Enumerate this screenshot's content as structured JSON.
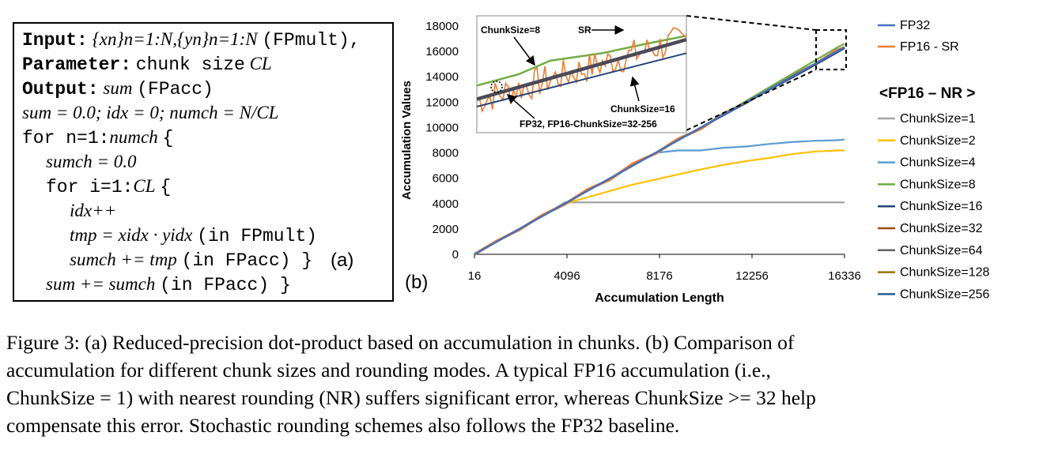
{
  "algorithm": {
    "input_kw": "Input:",
    "input_expr": "{xn}n=1:N,{yn}n=1:N",
    "input_note": "(FPmult),",
    "param_kw": "Parameter:",
    "param_text": "chunk size",
    "param_var": "CL",
    "output_kw": "Output:",
    "output_var": "sum",
    "output_note": "(FPacc)",
    "l4": "sum = 0.0; idx = 0; numch = N/CL",
    "l5_kw": "for n=1:",
    "l5_var": "numch",
    "l5_end": "{",
    "l6": "sumch = 0.0",
    "l7_kw": "for i=1:",
    "l7_var": "CL",
    "l7_end": "{",
    "l8": "idx++",
    "l9_expr": "tmp = xidx · yidx",
    "l9_note": "(in FPmult)",
    "l10_expr": "sumch += tmp",
    "l10_note": "(in FPacc) }",
    "l11_expr": "sum += sumch",
    "l11_note": "(in FPacc) }",
    "panel_label": "(a)"
  },
  "chart_panel_label": "(b)",
  "chart_data": {
    "type": "line",
    "xlabel": "Accumulation Length",
    "ylabel": "Accumulation Values",
    "x_ticks": [
      16,
      4096,
      8176,
      12256,
      16336
    ],
    "y_ticks": [
      0,
      2000,
      4000,
      6000,
      8000,
      10000,
      12000,
      14000,
      16000,
      18000
    ],
    "xlim": [
      16,
      16336
    ],
    "ylim": [
      0,
      18000
    ],
    "x": [
      16,
      1000,
      2000,
      3000,
      4000,
      5000,
      6000,
      7000,
      8000,
      9000,
      10000,
      11000,
      12000,
      13000,
      14000,
      15000,
      16000,
      16336
    ],
    "legend_top": [
      "FP32",
      "FP16 - SR"
    ],
    "legend_group_title": "<FP16 – NR >",
    "series": [
      {
        "name": "FP32",
        "color": "#4472c4",
        "values": [
          0,
          1000,
          2000,
          3000,
          4000,
          5000,
          6000,
          7000,
          8000,
          9000,
          10000,
          11000,
          12000,
          13000,
          14000,
          15000,
          16000,
          16336
        ]
      },
      {
        "name": "FP16 - SR",
        "color": "#ed7d31",
        "values": [
          0,
          1050,
          1950,
          3080,
          3950,
          5100,
          5900,
          7150,
          7950,
          9100,
          9900,
          11100,
          11950,
          13050,
          14100,
          14950,
          16100,
          16300
        ]
      },
      {
        "name": "ChunkSize=1",
        "color": "#a5a5a5",
        "values": [
          0,
          1000,
          2000,
          3000,
          4096,
          4096,
          4096,
          4096,
          4096,
          4096,
          4096,
          4096,
          4096,
          4096,
          4096,
          4096,
          4096,
          4096
        ]
      },
      {
        "name": "ChunkSize=2",
        "color": "#ffc000",
        "values": [
          0,
          1000,
          2000,
          3000,
          4000,
          4500,
          5000,
          5500,
          5900,
          6300,
          6700,
          7050,
          7350,
          7600,
          7900,
          8100,
          8192,
          8192
        ]
      },
      {
        "name": "ChunkSize=4",
        "color": "#5b9bd5",
        "values": [
          0,
          1000,
          2000,
          3000,
          4000,
          5000,
          6000,
          7000,
          8000,
          8192,
          8192,
          8400,
          8500,
          8700,
          8850,
          8950,
          9000,
          9050
        ]
      },
      {
        "name": "ChunkSize=8",
        "color": "#70ad47",
        "values": [
          0,
          1000,
          2000,
          3000,
          4000,
          5000,
          6000,
          7000,
          8000,
          9000,
          10000,
          11050,
          12100,
          13150,
          14200,
          15250,
          16300,
          16600
        ]
      },
      {
        "name": "ChunkSize=16",
        "color": "#264478",
        "values": [
          0,
          1000,
          2000,
          3000,
          4000,
          5000,
          6000,
          7000,
          8000,
          9000,
          10000,
          10950,
          11950,
          12950,
          13900,
          14900,
          15900,
          16250
        ]
      },
      {
        "name": "ChunkSize=32",
        "color": "#9e480e",
        "values": [
          0,
          1000,
          2000,
          3000,
          4000,
          5000,
          6000,
          7000,
          8000,
          9000,
          10000,
          11000,
          12000,
          13000,
          14000,
          15000,
          16000,
          16336
        ]
      },
      {
        "name": "ChunkSize=64",
        "color": "#636363",
        "values": [
          0,
          1000,
          2000,
          3000,
          4000,
          5000,
          6000,
          7000,
          8000,
          9000,
          10000,
          11000,
          12000,
          13000,
          14000,
          15000,
          16000,
          16336
        ]
      },
      {
        "name": "ChunkSize=128",
        "color": "#997300",
        "values": [
          0,
          1000,
          2000,
          3000,
          4000,
          5000,
          6000,
          7000,
          8000,
          9000,
          10000,
          11000,
          12000,
          13000,
          14000,
          15000,
          16000,
          16336
        ]
      },
      {
        "name": "ChunkSize=256",
        "color": "#255e91",
        "values": [
          0,
          1000,
          2000,
          3000,
          4000,
          5000,
          6000,
          7000,
          8000,
          9000,
          10000,
          11000,
          12000,
          13000,
          14000,
          15000,
          16000,
          16336
        ]
      }
    ],
    "inset_annotations": [
      "ChunkSize=8",
      "SR",
      "ChunkSize=16",
      "FP32, FP16-ChunkSize=32-256"
    ]
  },
  "caption": [
    "Figure 3: (a) Reduced-precision dot-product based on accumulation in chunks. (b) Comparison of",
    "accumulation for different chunk sizes and rounding modes.  A typical FP16 accumulation (i.e.,",
    "ChunkSize = 1) with nearest rounding (NR) suffers significant error, whereas ChunkSize >= 32 help",
    "compensate this error. Stochastic rounding schemes also follows the FP32 baseline."
  ]
}
